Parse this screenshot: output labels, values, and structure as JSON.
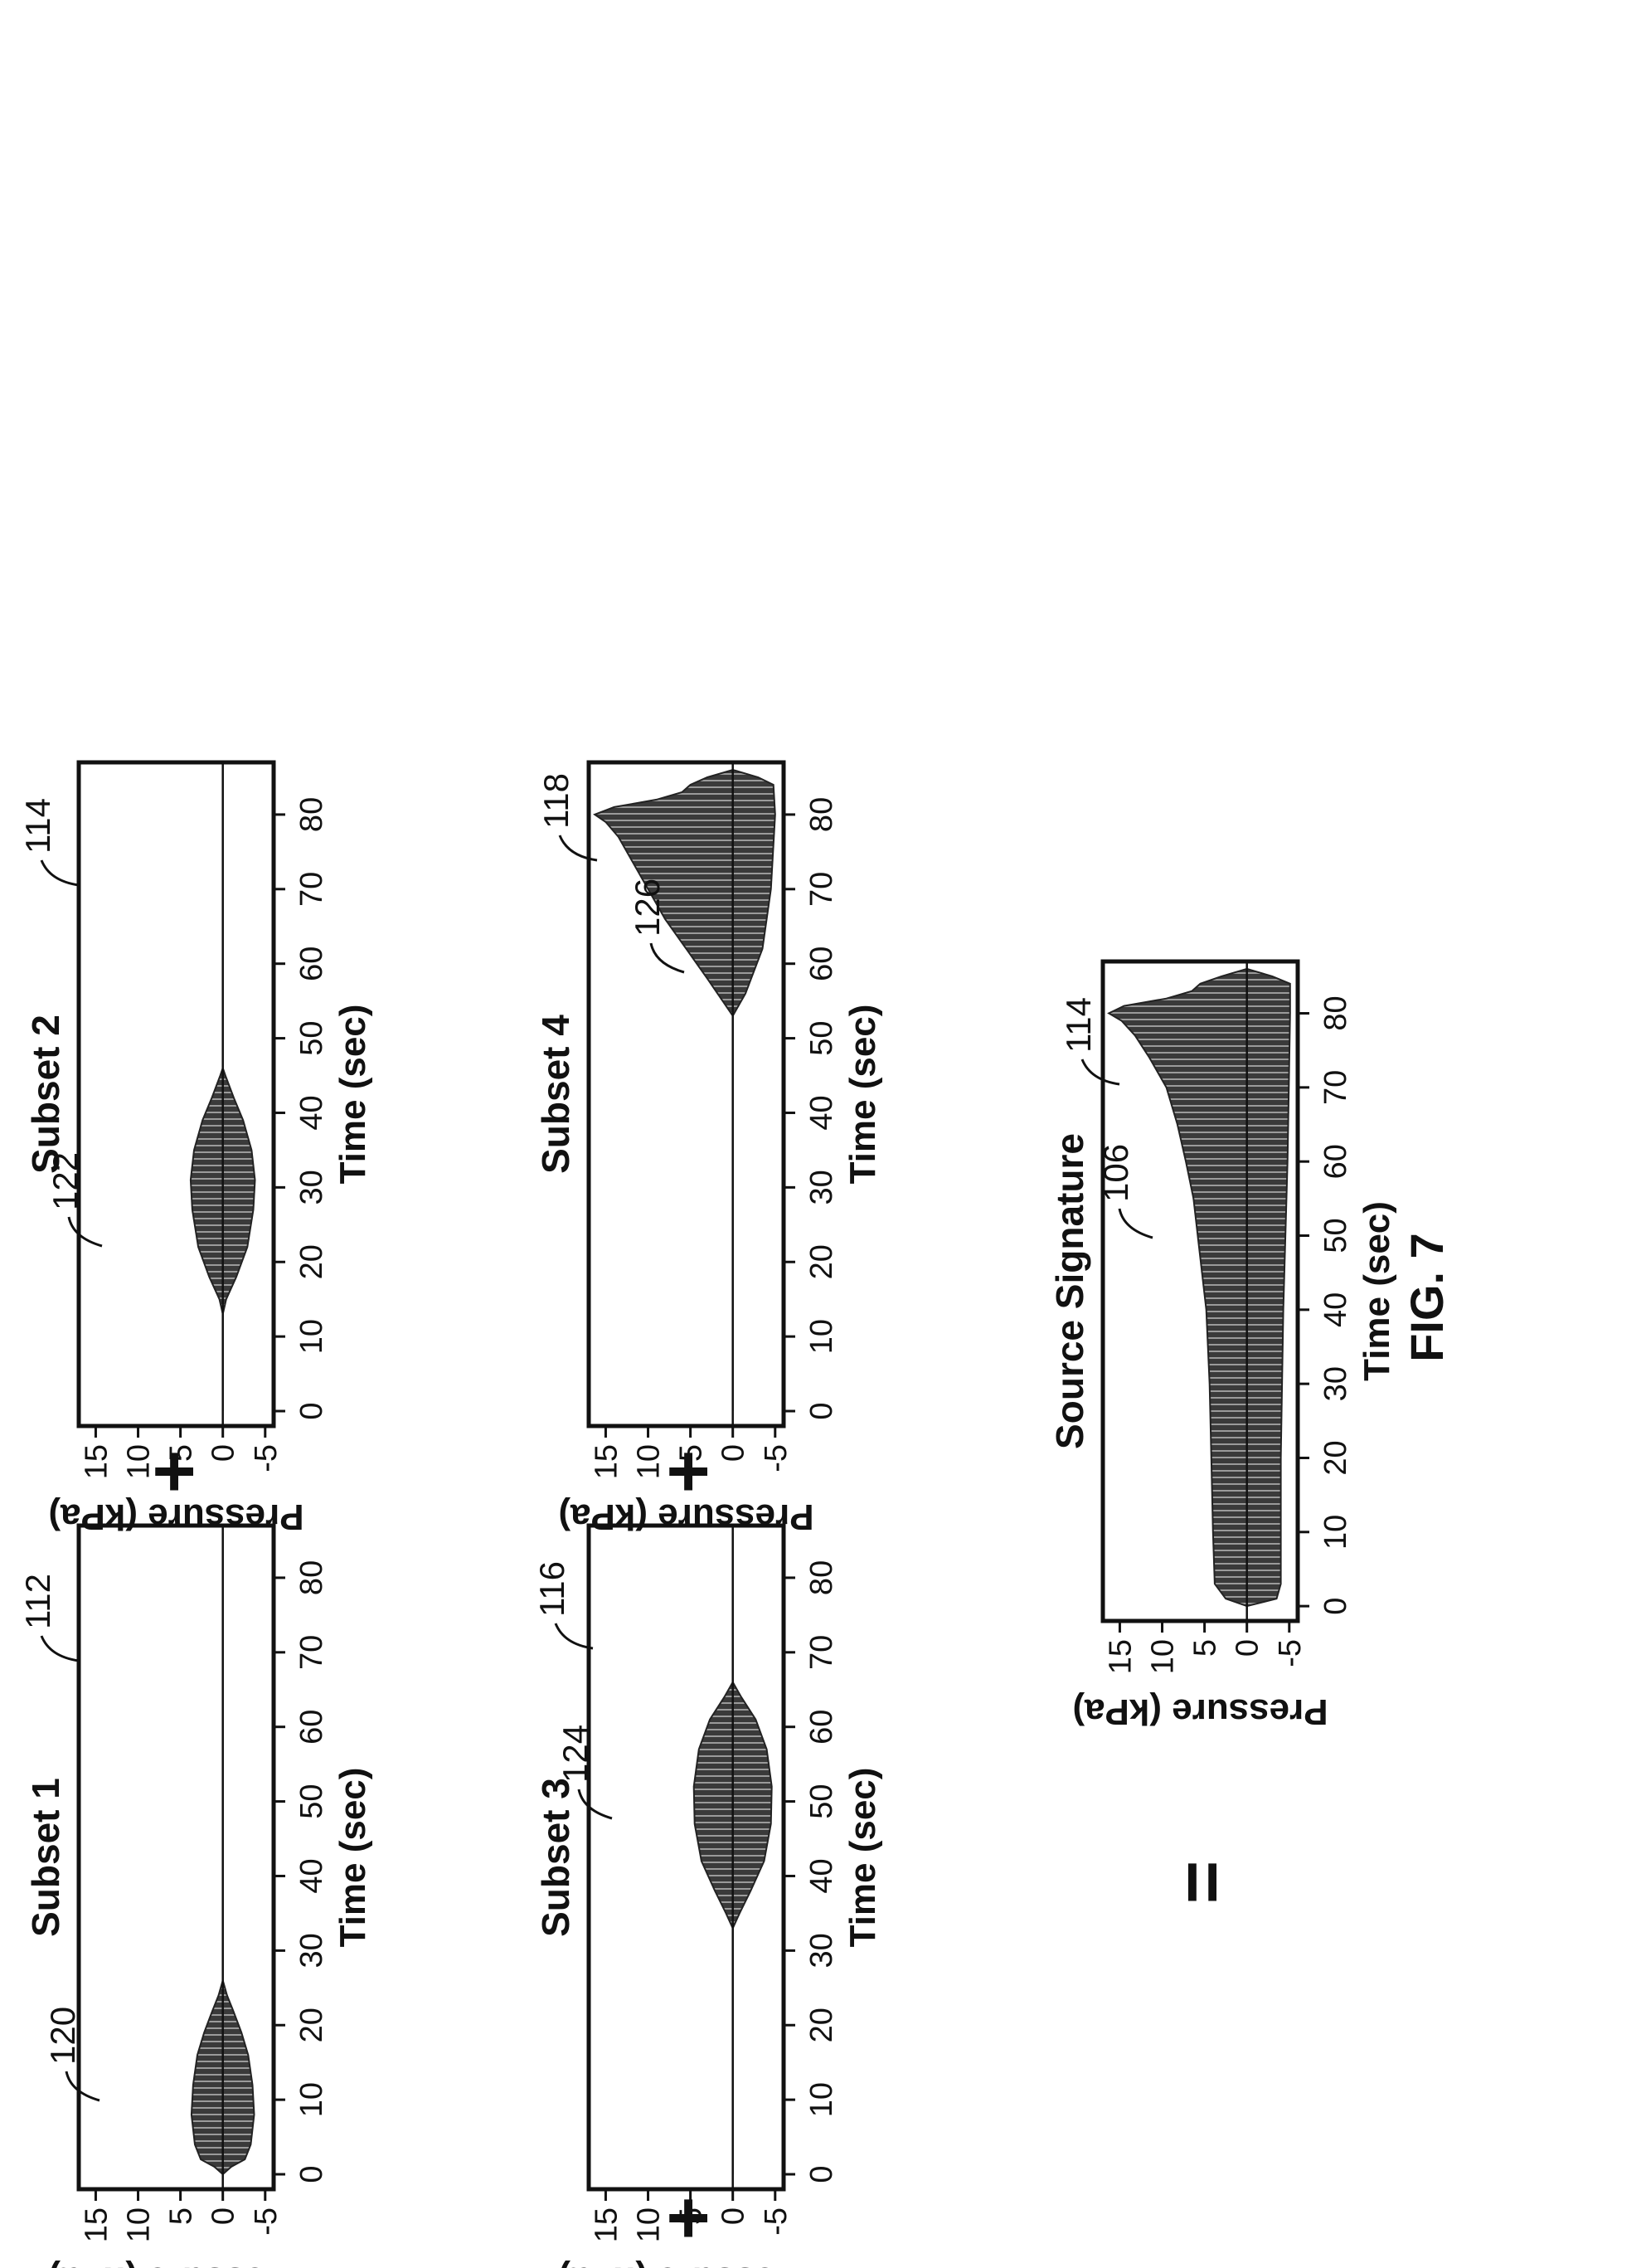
{
  "figure": {
    "label": "FIG. 7",
    "plus_symbol": "+",
    "equals_symbol": "="
  },
  "chart_data": [
    {
      "id": "subset1",
      "type": "area",
      "title": "Subset 1",
      "xlabel": "Time (sec)",
      "ylabel": "Pressure (kPa)",
      "xlim": [
        -2,
        87
      ],
      "ylim": [
        -6,
        17
      ],
      "xticks": [
        "0",
        "10",
        "20",
        "30",
        "40",
        "50",
        "60",
        "70",
        "80"
      ],
      "yticks": [
        "15",
        "10",
        "5",
        "0",
        "-5"
      ],
      "ref_panel": "112",
      "ref_signal": "120",
      "envelope": [
        [
          0,
          0
        ],
        [
          1,
          1.0
        ],
        [
          2,
          2.6
        ],
        [
          4,
          3.3
        ],
        [
          8,
          3.7
        ],
        [
          12,
          3.5
        ],
        [
          16,
          3.0
        ],
        [
          19,
          2.2
        ],
        [
          22,
          1.2
        ],
        [
          24,
          0.5
        ],
        [
          26,
          0
        ],
        [
          86,
          0
        ]
      ]
    },
    {
      "id": "subset2",
      "type": "area",
      "title": "Subset 2",
      "xlabel": "Time (sec)",
      "ylabel": "Pressure (kPa)",
      "xlim": [
        -2,
        87
      ],
      "ylim": [
        -6,
        17
      ],
      "xticks": [
        "0",
        "10",
        "20",
        "30",
        "40",
        "50",
        "60",
        "70",
        "80"
      ],
      "yticks": [
        "15",
        "10",
        "5",
        "0",
        "-5"
      ],
      "ref_panel": "114",
      "ref_signal": "122",
      "envelope": [
        [
          0,
          0
        ],
        [
          13,
          0
        ],
        [
          15,
          0.4
        ],
        [
          18,
          1.6
        ],
        [
          22,
          2.9
        ],
        [
          27,
          3.6
        ],
        [
          31,
          3.8
        ],
        [
          35,
          3.4
        ],
        [
          39,
          2.4
        ],
        [
          42,
          1.3
        ],
        [
          45,
          0.3
        ],
        [
          46,
          0
        ],
        [
          86,
          0
        ]
      ]
    },
    {
      "id": "subset3",
      "type": "area",
      "title": "Subset 3",
      "xlabel": "Time (sec)",
      "ylabel": "Pressure (kPa)",
      "xlim": [
        -2,
        87
      ],
      "ylim": [
        -6,
        17
      ],
      "xticks": [
        "0",
        "10",
        "20",
        "30",
        "40",
        "50",
        "60",
        "70",
        "80"
      ],
      "yticks": [
        "15",
        "10",
        "5",
        "0",
        "-5"
      ],
      "ref_panel": "116",
      "ref_signal": "124",
      "envelope": [
        [
          0,
          0
        ],
        [
          33,
          0
        ],
        [
          35,
          0.8
        ],
        [
          38,
          2.1
        ],
        [
          42,
          3.7
        ],
        [
          47,
          4.5
        ],
        [
          52,
          4.6
        ],
        [
          57,
          4.0
        ],
        [
          61,
          2.7
        ],
        [
          64,
          1.0
        ],
        [
          66,
          0
        ],
        [
          86,
          0
        ]
      ]
    },
    {
      "id": "subset4",
      "type": "area",
      "title": "Subset 4",
      "xlabel": "Time (sec)",
      "ylabel": "Pressure (kPa)",
      "xlim": [
        -2,
        87
      ],
      "ylim": [
        -6,
        17
      ],
      "xticks": [
        "0",
        "10",
        "20",
        "30",
        "40",
        "50",
        "60",
        "70",
        "80"
      ],
      "yticks": [
        "15",
        "10",
        "5",
        "0",
        "-5"
      ],
      "ref_panel": "118",
      "ref_signal": "126",
      "envelope": [
        [
          0,
          0
        ],
        [
          53,
          0
        ],
        [
          55,
          1.2
        ],
        [
          58,
          3.0
        ],
        [
          62,
          5.5
        ],
        [
          66,
          8.0
        ],
        [
          70,
          10.0
        ],
        [
          74,
          12.0
        ],
        [
          77,
          13.5
        ],
        [
          79,
          15.0
        ],
        [
          80,
          16.3
        ],
        [
          81,
          14.0
        ],
        [
          82,
          9.0
        ],
        [
          83,
          6.0
        ],
        [
          84,
          5.0
        ],
        [
          85,
          3.0
        ],
        [
          86,
          0
        ]
      ],
      "envelope_lower": [
        [
          0,
          0
        ],
        [
          53,
          0
        ],
        [
          56,
          -1.5
        ],
        [
          62,
          -3.5
        ],
        [
          70,
          -4.5
        ],
        [
          80,
          -5.0
        ],
        [
          84,
          -4.8
        ],
        [
          85,
          -3.0
        ],
        [
          86,
          0
        ]
      ]
    },
    {
      "id": "source",
      "type": "area",
      "title": "Source Signature",
      "xlabel": "Time (sec)",
      "ylabel": "Pressure (kPa)",
      "xlim": [
        -2,
        87
      ],
      "ylim": [
        -6,
        17
      ],
      "xticks": [
        "0",
        "10",
        "20",
        "30",
        "40",
        "50",
        "60",
        "70",
        "80"
      ],
      "yticks": [
        "15",
        "10",
        "5",
        "0",
        "-5"
      ],
      "ref_panel": "114",
      "ref_signal": "106",
      "envelope": [
        [
          0,
          0
        ],
        [
          1,
          2.5
        ],
        [
          3,
          3.8
        ],
        [
          10,
          4.0
        ],
        [
          20,
          4.2
        ],
        [
          30,
          4.4
        ],
        [
          40,
          4.8
        ],
        [
          50,
          5.8
        ],
        [
          55,
          6.3
        ],
        [
          60,
          7.2
        ],
        [
          65,
          8.2
        ],
        [
          70,
          9.5
        ],
        [
          74,
          11.5
        ],
        [
          77,
          13.2
        ],
        [
          79,
          14.8
        ],
        [
          80,
          16.3
        ],
        [
          81,
          14.5
        ],
        [
          82,
          9.5
        ],
        [
          83,
          6.5
        ],
        [
          84,
          5.5
        ],
        [
          85,
          3.0
        ],
        [
          86,
          0
        ]
      ],
      "envelope_lower": [
        [
          0,
          0
        ],
        [
          1,
          -3.5
        ],
        [
          3,
          -4.0
        ],
        [
          20,
          -4.0
        ],
        [
          40,
          -4.3
        ],
        [
          60,
          -4.8
        ],
        [
          80,
          -5.1
        ],
        [
          84,
          -5.1
        ],
        [
          85,
          -3.0
        ],
        [
          86,
          0
        ]
      ]
    }
  ]
}
